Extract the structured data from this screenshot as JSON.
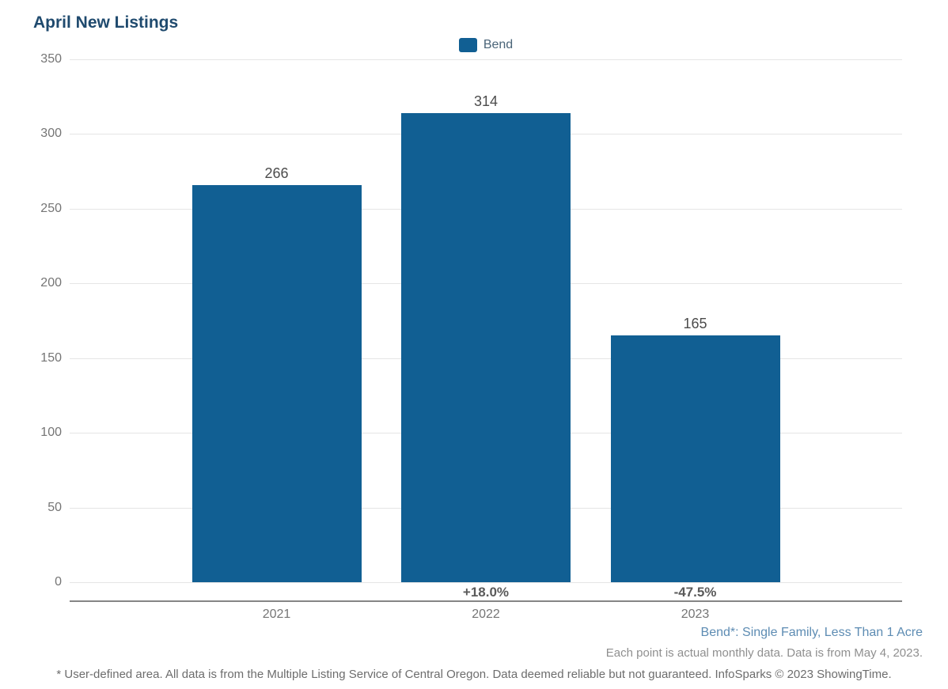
{
  "chart_data": {
    "type": "bar",
    "title": "April New Listings",
    "series_name": "Bend",
    "categories": [
      "2021",
      "2022",
      "2023"
    ],
    "values": [
      266,
      314,
      165
    ],
    "value_labels": [
      "266",
      "314",
      "165"
    ],
    "change_labels": [
      "",
      "+18.0%",
      "-47.5%"
    ],
    "xlabel": "",
    "ylabel": "",
    "ylim": [
      0,
      350
    ],
    "yticks": [
      0,
      50,
      100,
      150,
      200,
      250,
      300,
      350
    ],
    "grid": true,
    "legend_position": "top-center",
    "bar_color": "#115f93"
  },
  "footnotes": {
    "series_note": "Bend*: Single Family, Less Than 1 Acre",
    "data_note": "Each point is actual monthly data. Data is from May 4, 2023.",
    "disclaimer": "* User-defined area. All data is from the Multiple Listing Service of Central Oregon. Data deemed reliable but not guaranteed. InfoSparks © 2023 ShowingTime."
  },
  "colors": {
    "title": "#1f4a6e",
    "bar": "#115f93",
    "gridline": "#e5e5e5",
    "axis_line": "#858585",
    "tick_label": "#757575",
    "value_label": "#4c4c4c",
    "change_label": "#5a5a5a",
    "legend_label": "#4a6478",
    "series_note": "#5d8cb3",
    "data_note": "#8f8f8f",
    "disclaimer": "#6d6d6d"
  }
}
